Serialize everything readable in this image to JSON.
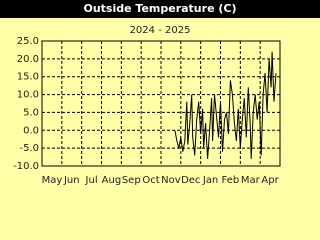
{
  "chart_data": {
    "type": "line",
    "title": "Outside Temperature (C)",
    "subtitle": "2024 - 2025",
    "categories": [
      "May",
      "Jun",
      "Jul",
      "Aug",
      "Sep",
      "Oct",
      "Nov",
      "Dec",
      "Jan",
      "Feb",
      "Mar",
      "Apr"
    ],
    "ylim": [
      -10,
      25
    ],
    "yticks": [
      {
        "value": -10,
        "label": "-10.0"
      },
      {
        "value": -5,
        "label": "-5.0"
      },
      {
        "value": 0,
        "label": "0.0"
      },
      {
        "value": 5,
        "label": "5.0"
      },
      {
        "value": 10,
        "label": "10.0"
      },
      {
        "value": 15,
        "label": "15.0"
      },
      {
        "value": 20,
        "label": "20.0"
      },
      {
        "value": 25,
        "label": "25.0"
      }
    ],
    "grid": true,
    "series": [
      {
        "color": "#000000",
        "x": [
          6.7,
          6.8,
          6.9,
          7.0,
          7.1,
          7.2,
          7.3,
          7.35,
          7.45,
          7.55,
          7.6,
          7.7,
          7.8,
          7.9,
          8.0,
          8.1,
          8.15,
          8.25,
          8.35,
          8.45,
          8.55,
          8.6,
          8.7,
          8.8,
          8.9,
          9.0,
          9.1,
          9.2,
          9.3,
          9.4,
          9.5,
          9.6,
          9.7,
          9.8,
          9.9,
          10.0,
          10.1,
          10.2,
          10.3,
          10.4,
          10.5,
          10.55,
          10.65,
          10.75,
          10.85,
          10.95,
          11.05,
          11.15,
          11.25,
          11.35,
          11.45,
          11.55,
          11.6,
          11.7,
          11.8
        ],
        "values": [
          0,
          -3,
          -5,
          -2,
          -6,
          -3,
          8,
          -4,
          2,
          10,
          -2,
          -7,
          3,
          8,
          -1,
          6,
          -5,
          2,
          -8,
          0,
          9,
          -3,
          10,
          4,
          -2,
          8,
          -6,
          3,
          5,
          -1,
          14,
          10,
          2,
          -3,
          6,
          -5,
          3,
          9,
          -2,
          12,
          1,
          -8,
          5,
          10,
          3,
          8,
          -7,
          10,
          16,
          5,
          20,
          12,
          22,
          8,
          16
        ]
      }
    ]
  }
}
